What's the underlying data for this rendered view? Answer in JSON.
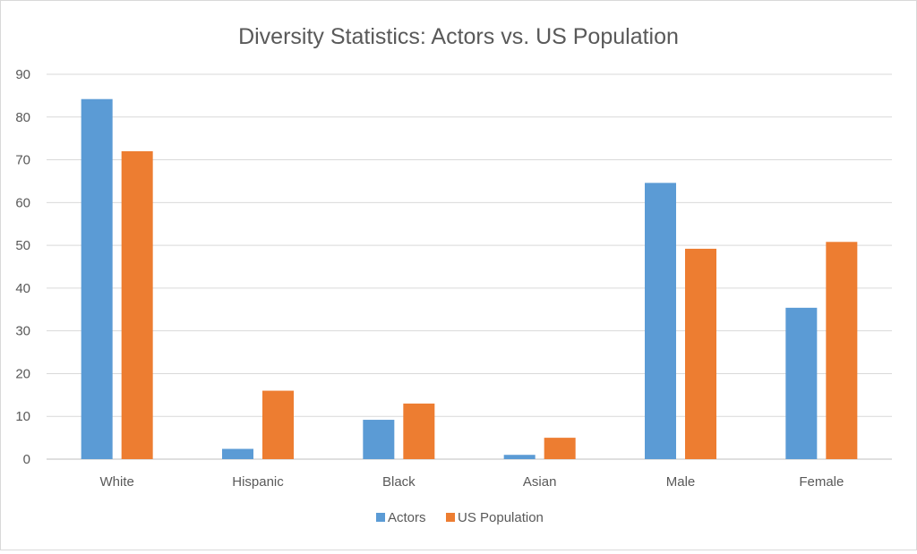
{
  "chart_data": {
    "type": "bar",
    "title": "Diversity Statistics: Actors vs. US Population",
    "xlabel": "",
    "ylabel": "",
    "categories": [
      "White",
      "Hispanic",
      "Black",
      "Asian",
      "Male",
      "Female"
    ],
    "series": [
      {
        "name": "Actors",
        "color": "#5b9bd5",
        "values": [
          84.2,
          2.4,
          9.2,
          1.0,
          64.6,
          35.4
        ]
      },
      {
        "name": "US Population",
        "color": "#ed7d31",
        "values": [
          72,
          16,
          13,
          5,
          49.2,
          50.8
        ]
      }
    ],
    "ylim": [
      0,
      90
    ],
    "yticks": [
      "0",
      "10",
      "20",
      "30",
      "40",
      "50",
      "60",
      "70",
      "80",
      "90"
    ],
    "grid": true,
    "legend_position": "bottom"
  }
}
